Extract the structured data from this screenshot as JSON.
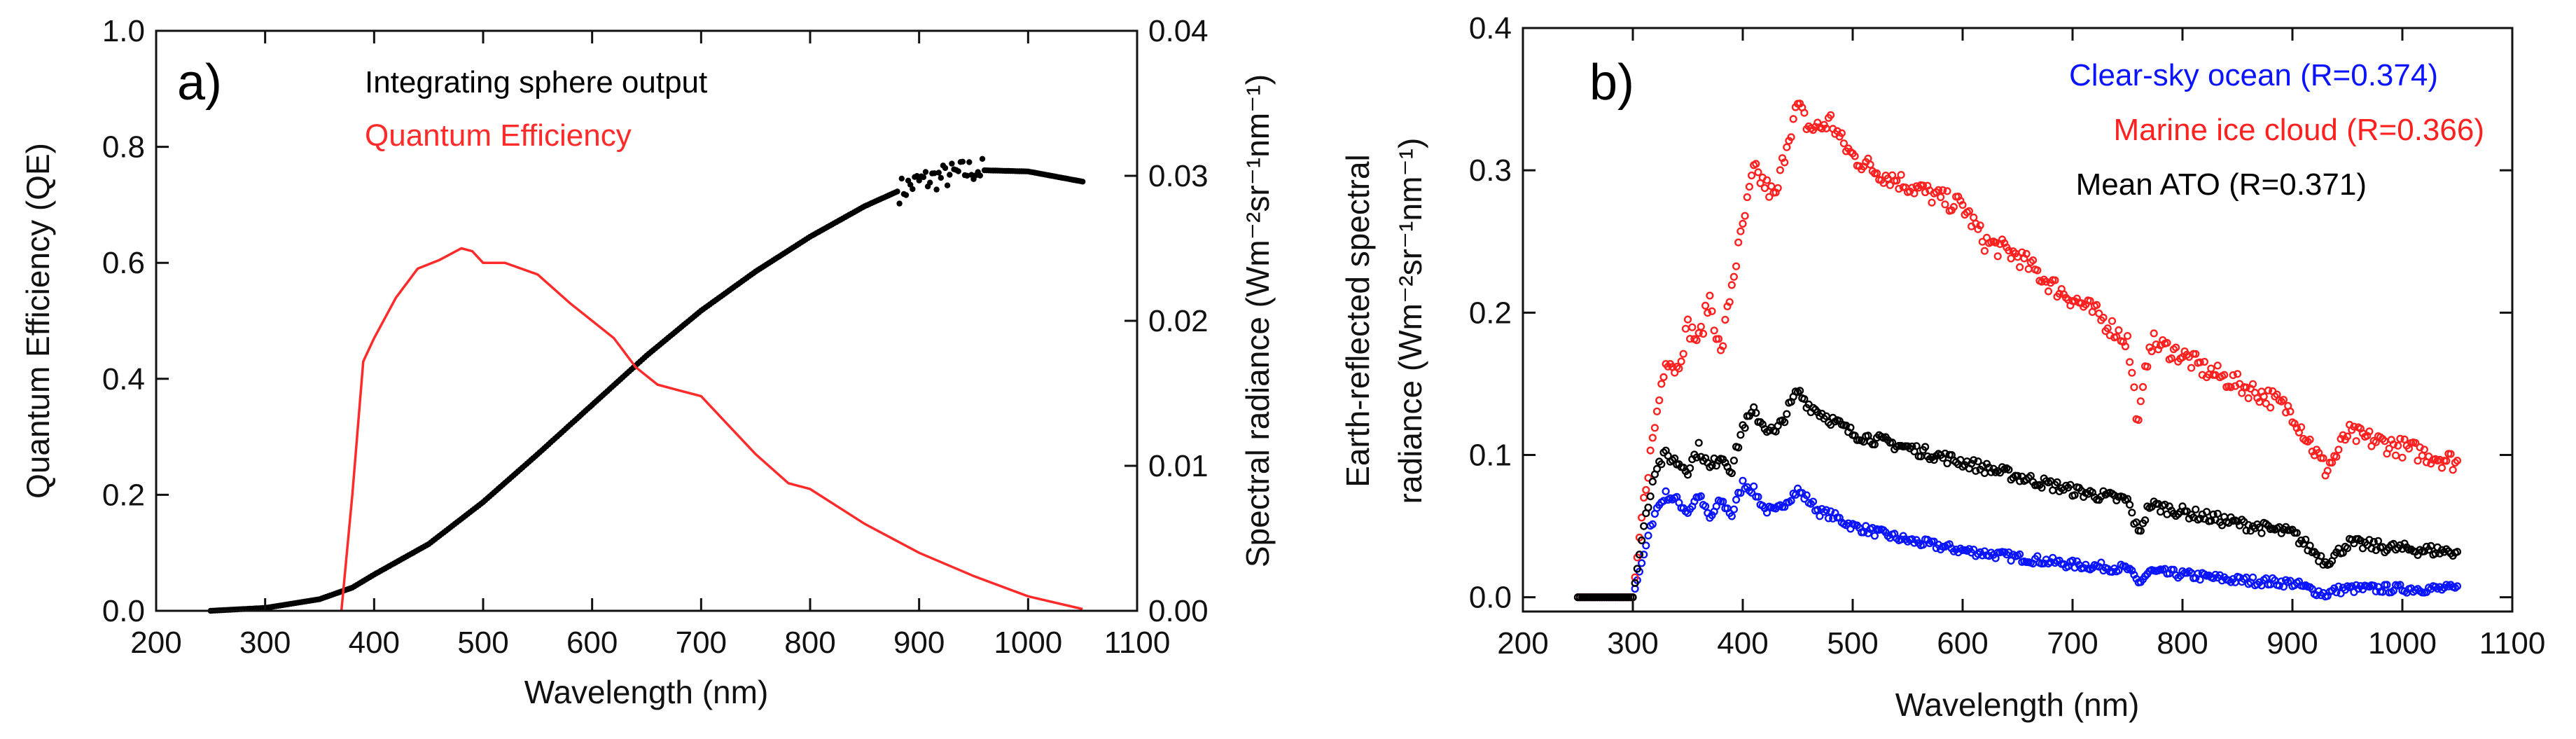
{
  "figure": {
    "panels": [
      {
        "label": "a)",
        "left_ylabel": "Quantum Efficiency (QE)",
        "right_ylabel": "Spectral radiance (Wm⁻²sr⁻¹nm⁻¹)",
        "xlabel": "Wavelength (nm)",
        "legend": [
          {
            "text": "Integrating sphere output",
            "color": "#000000"
          },
          {
            "text": "Quantum Efficiency",
            "color": "#ff2a2a"
          }
        ]
      },
      {
        "label": "b)",
        "ylabel_line1": "Earth-reflected spectral",
        "ylabel_line2": "radiance (Wm⁻²sr⁻¹nm⁻¹)",
        "xlabel": "Wavelength (nm)",
        "legend": [
          {
            "text": "Clear-sky ocean (R=0.374)",
            "color": "#0a14ff"
          },
          {
            "text": "Marine ice cloud (R=0.366)",
            "color": "#ff2020"
          },
          {
            "text": "Mean ATO (R=0.371)",
            "color": "#000000"
          }
        ]
      }
    ]
  },
  "chart_data": [
    {
      "type": "line",
      "panel": "a)",
      "xlabel": "Wavelength (nm)",
      "ylabel": "Quantum Efficiency (QE)",
      "y2label": "Spectral radiance (Wm⁻²sr⁻¹nm⁻¹)",
      "xlim": [
        200,
        1100
      ],
      "ylim": [
        0,
        1.0
      ],
      "y2lim": [
        0,
        0.04
      ],
      "xticks": [
        200,
        300,
        400,
        500,
        600,
        700,
        800,
        900,
        1000,
        1100
      ],
      "yticks": [
        "0.0",
        "0.2",
        "0.4",
        "0.6",
        "0.8",
        "1.0"
      ],
      "y2ticks": [
        "0.00",
        "0.01",
        "0.02",
        "0.03",
        "0.04"
      ],
      "grid": false,
      "legend_position": "top-left",
      "series": [
        {
          "name": "Integrating sphere output",
          "axis": "right",
          "style": "points",
          "color": "#000000",
          "x": [
            250,
            300,
            350,
            380,
            400,
            450,
            500,
            550,
            600,
            650,
            700,
            750,
            800,
            850,
            900,
            950,
            1000,
            1050
          ],
          "y": [
            0.0,
            0.0002,
            0.0008,
            0.0016,
            0.0025,
            0.0046,
            0.0075,
            0.0108,
            0.0142,
            0.0176,
            0.0207,
            0.0234,
            0.0258,
            0.0279,
            0.0296,
            0.0304,
            0.0303,
            0.0296
          ]
        },
        {
          "name": "Quantum Efficiency",
          "axis": "left",
          "style": "line",
          "color": "#ff2a2a",
          "x": [
            370,
            380,
            390,
            400,
            420,
            440,
            460,
            480,
            490,
            500,
            520,
            550,
            580,
            600,
            620,
            640,
            660,
            680,
            700,
            720,
            750,
            780,
            800,
            850,
            900,
            950,
            1000,
            1050
          ],
          "y": [
            0.0,
            0.2,
            0.43,
            0.47,
            0.54,
            0.59,
            0.605,
            0.625,
            0.62,
            0.6,
            0.6,
            0.58,
            0.53,
            0.5,
            0.47,
            0.42,
            0.39,
            0.38,
            0.37,
            0.33,
            0.27,
            0.22,
            0.21,
            0.15,
            0.1,
            0.06,
            0.025,
            0.003
          ]
        }
      ]
    },
    {
      "type": "scatter",
      "panel": "b)",
      "xlabel": "Wavelength (nm)",
      "ylabel": "Earth-reflected spectral radiance (Wm⁻²sr⁻¹nm⁻¹)",
      "xlim": [
        200,
        1100
      ],
      "ylim": [
        -0.01,
        0.4
      ],
      "xticks": [
        200,
        300,
        400,
        500,
        600,
        700,
        800,
        900,
        1000,
        1100
      ],
      "yticks": [
        "0.0",
        "0.1",
        "0.2",
        "0.3",
        "0.4"
      ],
      "grid": false,
      "legend_position": "top-right",
      "series": [
        {
          "name": "Clear-sky ocean (R=0.374)",
          "color": "#0a14ff",
          "x": [
            250,
            300,
            310,
            320,
            330,
            340,
            350,
            360,
            370,
            380,
            390,
            400,
            410,
            420,
            430,
            440,
            450,
            460,
            470,
            480,
            500,
            550,
            600,
            650,
            700,
            750,
            760,
            770,
            800,
            850,
            900,
            930,
            940,
            950,
            1000,
            1050
          ],
          "y": [
            0.0,
            0.0,
            0.03,
            0.06,
            0.072,
            0.068,
            0.06,
            0.072,
            0.055,
            0.068,
            0.058,
            0.08,
            0.075,
            0.062,
            0.06,
            0.068,
            0.075,
            0.068,
            0.06,
            0.058,
            0.05,
            0.04,
            0.033,
            0.028,
            0.023,
            0.02,
            0.01,
            0.018,
            0.016,
            0.012,
            0.01,
            0.002,
            0.005,
            0.006,
            0.006,
            0.006
          ]
        },
        {
          "name": "Marine ice cloud (R=0.366)",
          "color": "#ff2020",
          "x": [
            250,
            300,
            310,
            320,
            330,
            340,
            350,
            360,
            370,
            380,
            390,
            400,
            410,
            420,
            430,
            440,
            450,
            460,
            470,
            480,
            490,
            500,
            520,
            550,
            580,
            600,
            620,
            650,
            680,
            700,
            720,
            750,
            760,
            770,
            800,
            820,
            850,
            880,
            900,
            930,
            940,
            950,
            1000,
            1050
          ],
          "y": [
            0.0,
            0.0,
            0.07,
            0.12,
            0.17,
            0.16,
            0.19,
            0.18,
            0.21,
            0.17,
            0.22,
            0.26,
            0.3,
            0.29,
            0.28,
            0.32,
            0.345,
            0.33,
            0.33,
            0.335,
            0.32,
            0.31,
            0.3,
            0.29,
            0.28,
            0.275,
            0.25,
            0.24,
            0.22,
            0.21,
            0.2,
            0.18,
            0.12,
            0.18,
            0.17,
            0.16,
            0.15,
            0.14,
            0.13,
            0.09,
            0.1,
            0.115,
            0.105,
            0.095
          ]
        },
        {
          "name": "Mean ATO (R=0.371)",
          "color": "#000000",
          "x": [
            250,
            300,
            310,
            320,
            330,
            340,
            350,
            360,
            370,
            380,
            390,
            400,
            410,
            420,
            430,
            440,
            450,
            460,
            470,
            480,
            500,
            550,
            600,
            650,
            700,
            750,
            760,
            770,
            800,
            850,
            900,
            930,
            940,
            950,
            1000,
            1050
          ],
          "y": [
            0.0,
            0.0,
            0.05,
            0.09,
            0.1,
            0.095,
            0.09,
            0.105,
            0.09,
            0.1,
            0.09,
            0.12,
            0.13,
            0.12,
            0.115,
            0.13,
            0.145,
            0.135,
            0.13,
            0.125,
            0.115,
            0.105,
            0.095,
            0.085,
            0.075,
            0.068,
            0.045,
            0.065,
            0.06,
            0.052,
            0.045,
            0.025,
            0.03,
            0.038,
            0.034,
            0.032
          ]
        }
      ]
    }
  ]
}
